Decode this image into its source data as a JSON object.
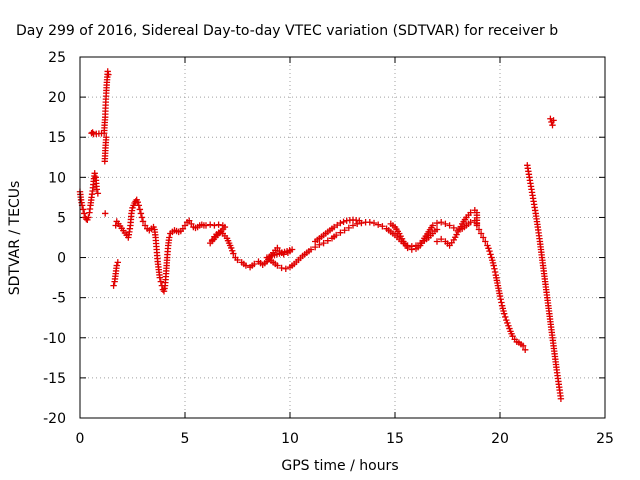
{
  "chart_data": {
    "type": "scatter",
    "title": "Day 299 of 2016, Sidereal Day-to-day VTEC variation (SDTVAR) for receiver b",
    "xlabel": "GPS time / hours",
    "ylabel": "SDTVAR / TECUs",
    "xlim": [
      0,
      25
    ],
    "ylim": [
      -20,
      25
    ],
    "xticks": [
      "0",
      "5",
      "10",
      "15",
      "20",
      "25"
    ],
    "yticks": [
      "25",
      "20",
      "15",
      "10",
      "5",
      "0",
      "-5",
      "-10",
      "-15",
      "-20"
    ],
    "grid": true,
    "marker": "plus",
    "color": "#e00000",
    "series": [
      {
        "points": [
          [
            0.0,
            8.2
          ],
          [
            0.05,
            7.2
          ],
          [
            0.1,
            6.5
          ],
          [
            0.15,
            6.0
          ],
          [
            0.2,
            5.5
          ],
          [
            0.25,
            5.0
          ],
          [
            0.3,
            4.8
          ],
          [
            0.35,
            4.7
          ],
          [
            0.4,
            5.0
          ],
          [
            0.45,
            5.6
          ],
          [
            0.5,
            6.5
          ],
          [
            0.55,
            7.5
          ],
          [
            0.6,
            8.3
          ],
          [
            0.65,
            9.5
          ],
          [
            0.7,
            10.5
          ],
          [
            0.75,
            10.0
          ],
          [
            0.8,
            8.5
          ],
          [
            0.85,
            8.0
          ],
          [
            0.55,
            15.5
          ],
          [
            0.6,
            15.6
          ],
          [
            0.65,
            15.4
          ],
          [
            1.15,
            15.5
          ],
          [
            1.17,
            16.5
          ],
          [
            1.2,
            17.5
          ],
          [
            1.22,
            19.0
          ],
          [
            1.25,
            20.5
          ],
          [
            1.27,
            21.5
          ],
          [
            1.3,
            22.5
          ],
          [
            1.32,
            23.2
          ],
          [
            1.35,
            22.8
          ],
          [
            1.18,
            12.0
          ],
          [
            1.2,
            13.0
          ],
          [
            1.22,
            14.0
          ],
          [
            1.25,
            15.0
          ],
          [
            1.2,
            5.5
          ],
          [
            1.6,
            -3.5
          ],
          [
            1.65,
            -3.0
          ],
          [
            1.7,
            -2.0
          ],
          [
            1.75,
            -1.0
          ],
          [
            1.8,
            -0.6
          ],
          [
            1.7,
            4.0
          ],
          [
            1.75,
            4.5
          ],
          [
            2.3,
            2.5
          ],
          [
            2.35,
            3.2
          ],
          [
            2.4,
            4.0
          ],
          [
            2.45,
            5.5
          ],
          [
            2.5,
            6.2
          ],
          [
            2.55,
            6.5
          ],
          [
            2.6,
            6.8
          ],
          [
            2.65,
            7.0
          ],
          [
            2.7,
            7.2
          ],
          [
            2.75,
            6.9
          ],
          [
            2.8,
            6.5
          ],
          [
            2.85,
            6.0
          ],
          [
            2.9,
            5.5
          ],
          [
            2.95,
            5.0
          ],
          [
            3.0,
            4.5
          ],
          [
            3.1,
            4.0
          ],
          [
            3.2,
            3.6
          ],
          [
            3.3,
            3.4
          ],
          [
            3.4,
            3.6
          ],
          [
            3.5,
            3.8
          ],
          [
            3.55,
            3.5
          ],
          [
            3.6,
            2.5
          ],
          [
            3.65,
            1.0
          ],
          [
            3.7,
            -0.5
          ],
          [
            3.75,
            -1.5
          ],
          [
            3.8,
            -2.5
          ],
          [
            3.85,
            -3.0
          ],
          [
            3.9,
            -3.5
          ],
          [
            3.95,
            -4.0
          ],
          [
            4.0,
            -4.2
          ],
          [
            4.05,
            -3.5
          ],
          [
            4.1,
            -2.0
          ],
          [
            4.15,
            0.0
          ],
          [
            4.2,
            1.5
          ],
          [
            4.25,
            2.5
          ],
          [
            4.3,
            3.0
          ],
          [
            4.4,
            3.2
          ],
          [
            4.5,
            3.4
          ],
          [
            4.6,
            3.3
          ],
          [
            4.7,
            3.2
          ],
          [
            4.8,
            3.3
          ],
          [
            4.9,
            3.6
          ],
          [
            5.0,
            4.0
          ],
          [
            5.1,
            4.4
          ],
          [
            5.2,
            4.6
          ],
          [
            5.3,
            4.2
          ],
          [
            5.4,
            3.8
          ],
          [
            5.5,
            3.7
          ],
          [
            5.6,
            3.8
          ],
          [
            5.7,
            4.0
          ],
          [
            5.8,
            4.1
          ],
          [
            5.9,
            4.0
          ],
          [
            6.0,
            4.0
          ],
          [
            6.2,
            4.1
          ],
          [
            6.4,
            4.0
          ],
          [
            6.6,
            4.1
          ],
          [
            6.8,
            4.0
          ],
          [
            6.9,
            3.8
          ],
          [
            6.2,
            1.8
          ],
          [
            6.3,
            2.2
          ],
          [
            6.4,
            2.6
          ],
          [
            6.5,
            2.9
          ],
          [
            6.6,
            3.1
          ],
          [
            6.7,
            3.2
          ],
          [
            6.8,
            3.0
          ],
          [
            6.9,
            2.7
          ],
          [
            7.0,
            2.4
          ],
          [
            7.1,
            1.8
          ],
          [
            7.2,
            1.2
          ],
          [
            7.3,
            0.5
          ],
          [
            7.4,
            0.0
          ],
          [
            7.5,
            -0.3
          ],
          [
            7.7,
            -0.6
          ],
          [
            7.9,
            -1.0
          ],
          [
            8.1,
            -1.2
          ],
          [
            8.3,
            -0.8
          ],
          [
            8.5,
            -0.5
          ],
          [
            8.7,
            -0.9
          ],
          [
            8.9,
            -0.5
          ],
          [
            9.1,
            0.3
          ],
          [
            9.3,
            0.9
          ],
          [
            9.4,
            1.2
          ],
          [
            9.5,
            0.8
          ],
          [
            9.7,
            0.4
          ],
          [
            9.9,
            0.6
          ],
          [
            10.1,
            1.0
          ],
          [
            8.9,
            0.0
          ],
          [
            9.0,
            -0.2
          ],
          [
            9.2,
            -0.6
          ],
          [
            9.4,
            -1.0
          ],
          [
            9.6,
            -1.3
          ],
          [
            9.8,
            -1.4
          ],
          [
            10.0,
            -1.2
          ],
          [
            10.2,
            -0.8
          ],
          [
            10.4,
            -0.3
          ],
          [
            10.6,
            0.2
          ],
          [
            10.8,
            0.6
          ],
          [
            11.0,
            1.0
          ],
          [
            11.2,
            1.3
          ],
          [
            11.4,
            1.6
          ],
          [
            11.6,
            1.8
          ],
          [
            11.8,
            2.1
          ],
          [
            12.0,
            2.4
          ],
          [
            12.2,
            2.8
          ],
          [
            12.4,
            3.1
          ],
          [
            12.6,
            3.4
          ],
          [
            12.8,
            3.7
          ],
          [
            13.0,
            4.0
          ],
          [
            13.2,
            4.2
          ],
          [
            13.4,
            4.3
          ],
          [
            13.6,
            4.4
          ],
          [
            13.8,
            4.4
          ],
          [
            14.0,
            4.3
          ],
          [
            14.2,
            4.1
          ],
          [
            14.4,
            3.9
          ],
          [
            14.6,
            3.6
          ],
          [
            14.8,
            3.2
          ],
          [
            15.0,
            2.8
          ],
          [
            15.2,
            2.3
          ],
          [
            15.4,
            1.8
          ],
          [
            15.6,
            1.5
          ],
          [
            15.8,
            1.4
          ],
          [
            16.0,
            1.5
          ],
          [
            16.2,
            1.8
          ],
          [
            16.4,
            2.1
          ],
          [
            16.6,
            2.5
          ],
          [
            16.8,
            3.0
          ],
          [
            16.9,
            3.3
          ],
          [
            17.0,
            3.5
          ],
          [
            11.2,
            2.0
          ],
          [
            11.5,
            2.6
          ],
          [
            11.8,
            3.2
          ],
          [
            12.1,
            3.8
          ],
          [
            12.4,
            4.3
          ],
          [
            12.7,
            4.6
          ],
          [
            13.0,
            4.7
          ],
          [
            13.3,
            4.6
          ],
          [
            14.8,
            4.2
          ],
          [
            15.0,
            3.8
          ],
          [
            15.2,
            3.0
          ],
          [
            15.4,
            2.0
          ],
          [
            15.6,
            1.2
          ],
          [
            15.8,
            1.0
          ],
          [
            16.0,
            1.1
          ],
          [
            16.2,
            1.5
          ],
          [
            16.4,
            2.4
          ],
          [
            16.6,
            3.2
          ],
          [
            16.8,
            4.0
          ],
          [
            17.0,
            4.3
          ],
          [
            17.2,
            4.4
          ],
          [
            17.4,
            4.2
          ],
          [
            17.6,
            4.0
          ],
          [
            17.8,
            3.7
          ],
          [
            18.0,
            3.4
          ],
          [
            18.2,
            3.6
          ],
          [
            18.4,
            4.0
          ],
          [
            18.6,
            4.4
          ],
          [
            18.8,
            4.6
          ],
          [
            18.9,
            4.2
          ],
          [
            17.0,
            2.0
          ],
          [
            17.2,
            2.3
          ],
          [
            17.4,
            2.0
          ],
          [
            17.6,
            1.5
          ],
          [
            17.8,
            2.2
          ],
          [
            18.0,
            3.2
          ],
          [
            18.2,
            4.2
          ],
          [
            18.4,
            5.0
          ],
          [
            18.6,
            5.6
          ],
          [
            18.8,
            5.9
          ],
          [
            18.9,
            5.6
          ],
          [
            18.9,
            4.0
          ],
          [
            19.0,
            3.5
          ],
          [
            19.1,
            3.0
          ],
          [
            19.2,
            2.5
          ],
          [
            19.3,
            2.0
          ],
          [
            19.4,
            1.5
          ],
          [
            19.5,
            0.8
          ],
          [
            19.6,
            0.0
          ],
          [
            19.7,
            -1.0
          ],
          [
            19.8,
            -2.2
          ],
          [
            19.9,
            -3.5
          ],
          [
            20.0,
            -4.8
          ],
          [
            20.1,
            -6.0
          ],
          [
            20.2,
            -7.0
          ],
          [
            20.3,
            -7.8
          ],
          [
            20.4,
            -8.5
          ],
          [
            20.5,
            -9.2
          ],
          [
            20.6,
            -9.8
          ],
          [
            20.7,
            -10.2
          ],
          [
            20.8,
            -10.5
          ],
          [
            20.9,
            -10.6
          ],
          [
            21.0,
            -10.8
          ],
          [
            21.1,
            -11.0
          ],
          [
            21.2,
            -11.5
          ],
          [
            21.3,
            11.5
          ],
          [
            21.4,
            10.0
          ],
          [
            21.5,
            8.5
          ],
          [
            21.6,
            7.0
          ],
          [
            21.7,
            5.5
          ],
          [
            21.8,
            3.8
          ],
          [
            21.9,
            2.0
          ],
          [
            22.0,
            0.0
          ],
          [
            22.1,
            -2.0
          ],
          [
            22.2,
            -4.0
          ],
          [
            22.3,
            -6.0
          ],
          [
            22.4,
            -8.0
          ],
          [
            22.5,
            -10.0
          ],
          [
            22.6,
            -12.0
          ],
          [
            22.7,
            -14.0
          ],
          [
            22.8,
            -15.8
          ],
          [
            22.9,
            -17.6
          ],
          [
            22.4,
            17.3
          ],
          [
            22.45,
            16.9
          ],
          [
            22.5,
            16.5
          ],
          [
            22.55,
            17.1
          ]
        ]
      }
    ]
  }
}
